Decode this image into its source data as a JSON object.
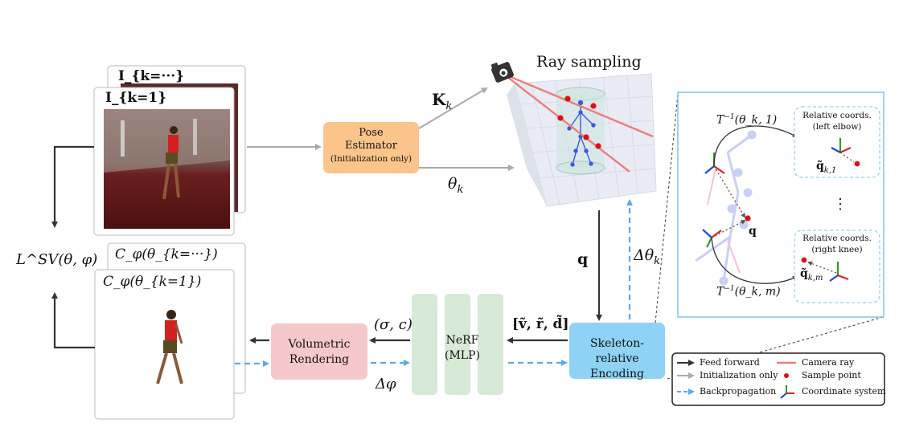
{
  "image_stack_front": "I_{k=1}",
  "image_stack_back": "I_{k=···}",
  "render_stack_front": "C_φ(θ_{k=1})",
  "render_stack_back": "C_φ(θ_{k=···})",
  "loss_label": "L^SV(θ, φ)",
  "pose_estimator": {
    "title": "Pose",
    "title2": "Estimator",
    "subtitle": "(Initialization only)",
    "color": "#fbc48a"
  },
  "k_label": "K",
  "k_sub": "k",
  "theta_label": "θ",
  "theta_sub": "k",
  "ray_sampling_title": "Ray sampling",
  "q_label": "q",
  "delta_theta_label": "Δθ",
  "delta_theta_sub": "k",
  "skeleton_encoding": {
    "line1": "Skeleton-relative",
    "line2": "Encoding",
    "color": "#8ed3f5"
  },
  "nerf": {
    "line1": "NeRF",
    "line2": "(MLP)",
    "color": "#d6ead6"
  },
  "volumetric": {
    "line1": "Volumetric",
    "line2": "Rendering",
    "color": "#f5c9c9"
  },
  "vrd_label": "[ṽ, r̃, d̃]",
  "sigma_c_label": "(σ, c)",
  "delta_phi_label": "Δφ",
  "zoom_panel": {
    "t1_label": "T",
    "t1_args": "(θ_k, 1)",
    "tm_label": "T",
    "tm_args": "(θ_k, m)",
    "inv": "−1",
    "rel1_line1": "Relative coords.",
    "rel1_line2": "(left elbow)",
    "rel2_line1": "Relative coords.",
    "rel2_line2": "(right knee)",
    "q1_label": "q̃",
    "q1_sub": "k,1",
    "qm_label": "q̃",
    "qm_sub": "k,m",
    "q_label": "q",
    "dots": "⋮"
  },
  "legend": {
    "feed_forward": "Feed forward",
    "init_only": "Initialization only",
    "backprop": "Backpropagation",
    "camera_ray": "Camera ray",
    "sample_point": "Sample point",
    "coord_system": "Coordinate system"
  },
  "colors": {
    "feed_forward": "#333333",
    "init_only": "#aaaaaa",
    "backprop": "#5aa9ec",
    "camera_ray": "#ef7c7c",
    "sample_point": "#dd1111",
    "panel_border": "#7ec5e8"
  }
}
